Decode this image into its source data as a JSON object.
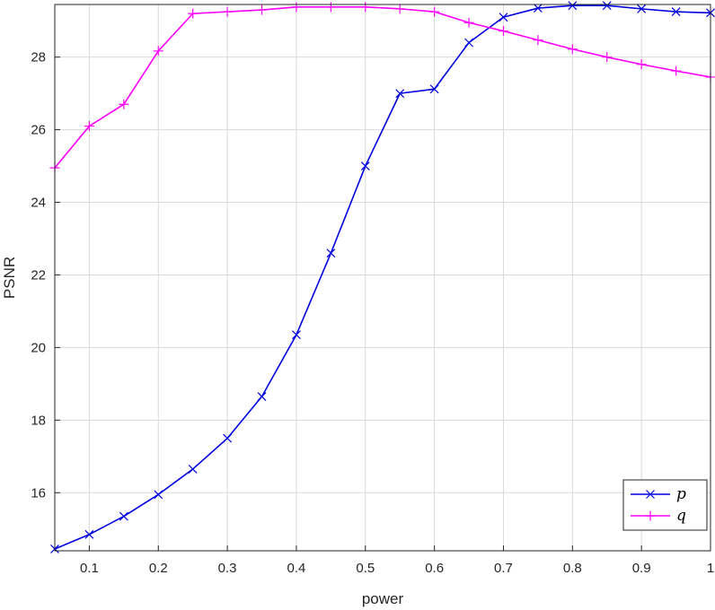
{
  "chart_data": {
    "type": "line",
    "xlabel": "power",
    "ylabel": "PSNR",
    "xlim": [
      0.05,
      1.0
    ],
    "ylim": [
      14.4,
      29.45
    ],
    "xticks": [
      "0.1",
      "0.2",
      "0.3",
      "0.4",
      "0.5",
      "0.6",
      "0.7",
      "0.8",
      "0.9",
      "1"
    ],
    "yticks": [
      "16",
      "18",
      "20",
      "22",
      "24",
      "26",
      "28"
    ],
    "grid": true,
    "legend_position": "bottom-right",
    "x": [
      0.05,
      0.1,
      0.15,
      0.2,
      0.25,
      0.3,
      0.35,
      0.4,
      0.45,
      0.5,
      0.55,
      0.6,
      0.65,
      0.7,
      0.75,
      0.8,
      0.85,
      0.9,
      0.95,
      1.0
    ],
    "series": [
      {
        "name": "p",
        "color": "#0000e0",
        "marker": "x",
        "values": [
          14.45,
          14.85,
          15.35,
          15.95,
          16.65,
          17.5,
          18.65,
          20.35,
          22.6,
          25.0,
          27.0,
          27.12,
          28.4,
          29.1,
          29.35,
          29.42,
          29.42,
          29.33,
          29.25,
          29.22
        ]
      },
      {
        "name": "q",
        "color": "#ff00ff",
        "marker": "+",
        "values": [
          24.95,
          26.1,
          26.7,
          28.17,
          29.2,
          29.25,
          29.3,
          29.38,
          29.38,
          29.38,
          29.33,
          29.25,
          28.95,
          28.72,
          28.47,
          28.22,
          28.0,
          27.8,
          27.62,
          27.45
        ]
      }
    ]
  }
}
